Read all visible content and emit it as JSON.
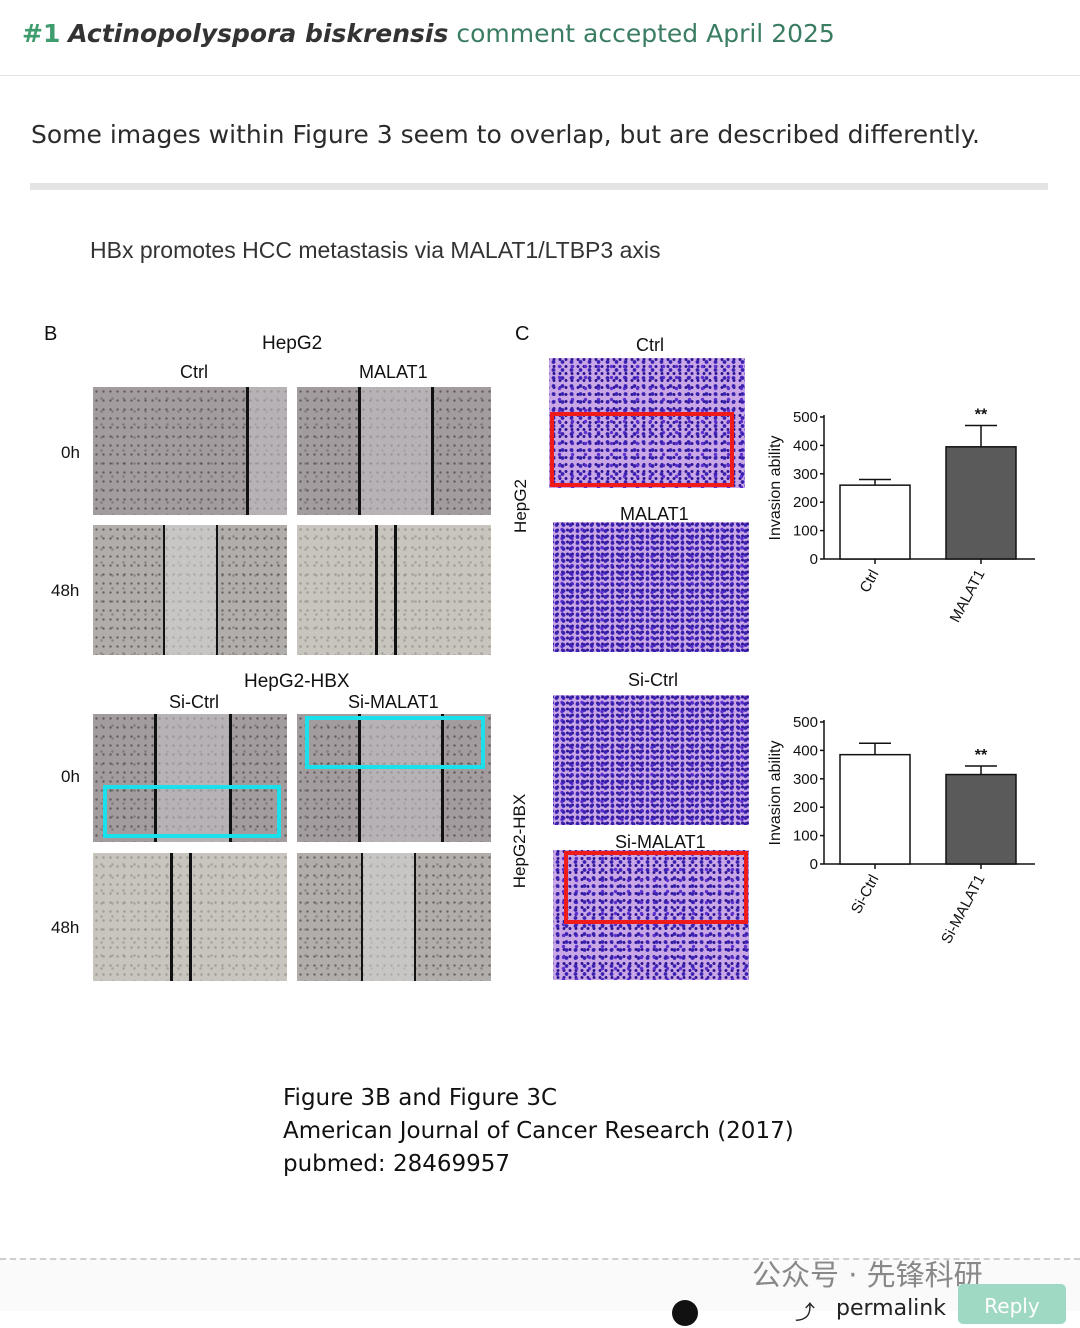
{
  "header": {
    "number": "#1",
    "species": "Actinopolyspora biskrensis",
    "status": "comment accepted April 2025"
  },
  "comment": {
    "text": "Some images within Figure 3 seem to overlap, but are described differently."
  },
  "figure": {
    "title": "HBx promotes HCC metastasis via MALAT1/LTBP3 axis",
    "panel_b": {
      "letter": "B",
      "top_group": "HepG2",
      "top_cols": [
        "Ctrl",
        "MALAT1"
      ],
      "bottom_group": "HepG2-HBX",
      "bottom_cols": [
        "Si-Ctrl",
        "Si-MALAT1"
      ],
      "rows": [
        "0h",
        "48h",
        "0h",
        "48h"
      ]
    },
    "panel_c": {
      "letter": "C",
      "top_group_label": "HepG2",
      "bottom_group_label": "HepG2-HBX",
      "image_labels": [
        "Ctrl",
        "MALAT1",
        "Si-Ctrl",
        "Si-MALAT1"
      ]
    },
    "annotation_colors": {
      "red": "#ef1b1b",
      "cyan": "#19e0ea"
    }
  },
  "chart_data": [
    {
      "type": "bar",
      "categories": [
        "Ctrl",
        "MALAT1"
      ],
      "values": [
        260,
        395
      ],
      "errors": [
        20,
        75
      ],
      "significance": [
        "",
        "**"
      ],
      "ylabel": "Invasion ability",
      "yticks": [
        "0",
        "100",
        "200",
        "300",
        "400",
        "500"
      ],
      "ylim": [
        0,
        500
      ],
      "bar_colors": [
        "#ffffff",
        "#5a5a5a"
      ]
    },
    {
      "type": "bar",
      "categories": [
        "Si-Ctrl",
        "Si-MALAT1"
      ],
      "values": [
        385,
        315
      ],
      "errors": [
        40,
        30
      ],
      "significance": [
        "",
        "**"
      ],
      "ylabel": "Invasion ability",
      "yticks": [
        "0",
        "100",
        "200",
        "300",
        "400",
        "500"
      ],
      "ylim": [
        0,
        500
      ],
      "bar_colors": [
        "#ffffff",
        "#5a5a5a"
      ]
    }
  ],
  "caption": {
    "line1": "Figure 3B and Figure 3C",
    "line2": "American Journal of Cancer Research (2017)",
    "line3": "pubmed: 28469957"
  },
  "footer": {
    "watermark": "公众号 · 先锋科研",
    "permalink": "permalink",
    "reply": "Reply"
  }
}
